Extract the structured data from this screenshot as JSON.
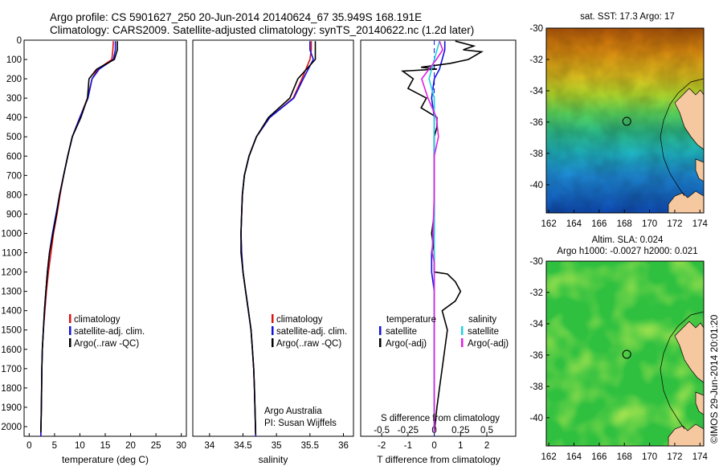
{
  "header": {
    "line1": "Argo profile: CS 5901627_250 20-Jun-2014 20140624_67 35.949S 168.191E",
    "line2": "Climatology: CARS2009. Satellite-adjusted climatology: synTS_20140622.nc (1.2d later)"
  },
  "colors": {
    "climatology": "#e01010",
    "satellite": "#1010e0",
    "argo": "#000000",
    "satellite_salinity": "#20d0e0",
    "argo_salinity": "#e020e0",
    "land": "#f5c8a0"
  },
  "chart_data": [
    {
      "type": "line",
      "id": "temperature",
      "xlabel": "temperature (deg C)",
      "xlim": [
        -1,
        31
      ],
      "xticks": [
        0,
        5,
        10,
        15,
        20,
        25,
        30
      ],
      "ylim": [
        0,
        2050
      ],
      "yticks": [
        0,
        100,
        200,
        300,
        400,
        500,
        600,
        700,
        800,
        900,
        1000,
        1100,
        1200,
        1300,
        1400,
        1500,
        1600,
        1700,
        1800,
        1900,
        2000
      ],
      "legend": {
        "placement": "lower-center",
        "entries": [
          "climatology",
          "satellite-adj. clim.",
          "Argo(..raw -QC)"
        ]
      },
      "series": [
        {
          "name": "climatology",
          "x": [
            16.6,
            16.5,
            16.3,
            13.5,
            12.4,
            11.5,
            10.0,
            8.5,
            7.6,
            6.8,
            6.1,
            5.5,
            4.8,
            4.3,
            3.8,
            3.4,
            3.1,
            2.8,
            2.6,
            2.5,
            2.4,
            2.3
          ],
          "y": [
            5,
            50,
            100,
            150,
            200,
            300,
            400,
            500,
            600,
            700,
            800,
            900,
            1000,
            1100,
            1200,
            1300,
            1400,
            1500,
            1600,
            1700,
            1900,
            2050
          ]
        },
        {
          "name": "satellite-adj. clim.",
          "x": [
            17.0,
            17.0,
            16.6,
            13.8,
            12.4,
            11.6,
            10.0,
            8.5,
            7.6,
            6.8,
            6.0,
            5.3,
            4.6,
            4.0,
            3.6,
            3.3,
            3.0,
            2.8,
            2.6,
            2.5,
            2.4,
            2.3
          ],
          "y": [
            5,
            50,
            100,
            150,
            200,
            300,
            400,
            500,
            600,
            700,
            800,
            900,
            1000,
            1100,
            1200,
            1300,
            1400,
            1500,
            1600,
            1700,
            1900,
            2050
          ]
        },
        {
          "name": "Argo(..raw -QC)",
          "x": [
            17.4,
            17.4,
            16.8,
            13.3,
            11.8,
            11.5,
            10.2,
            8.5,
            7.6,
            6.8,
            6.0,
            5.4,
            4.7,
            4.0,
            3.6,
            3.3,
            3.0,
            2.8,
            2.6,
            2.5,
            2.4,
            2.3
          ],
          "y": [
            5,
            50,
            100,
            150,
            200,
            300,
            400,
            500,
            600,
            700,
            800,
            900,
            1000,
            1100,
            1200,
            1300,
            1400,
            1500,
            1600,
            1700,
            1900,
            2030
          ]
        }
      ]
    },
    {
      "type": "line",
      "id": "salinity",
      "xlabel": "salinity",
      "xlim": [
        33.75,
        36.15
      ],
      "xticks": [
        34,
        34.5,
        35,
        35.5,
        36
      ],
      "ylim": [
        0,
        2050
      ],
      "legend": {
        "placement": "lower-center",
        "entries": [
          "climatology",
          "satellite-adj. clim.",
          "Argo(..raw -QC)"
        ]
      },
      "annotation": [
        "Argo Australia",
        "PI: Susan Wijffels"
      ],
      "series": [
        {
          "name": "climatology",
          "x": [
            35.52,
            35.52,
            35.5,
            35.38,
            35.25,
            34.9,
            34.7,
            34.59,
            34.52,
            34.49,
            34.48,
            34.47,
            34.48,
            34.5,
            34.54,
            34.58,
            34.62,
            34.64,
            34.66,
            34.67,
            34.69
          ],
          "y": [
            5,
            50,
            100,
            200,
            300,
            400,
            500,
            600,
            700,
            800,
            900,
            1000,
            1100,
            1200,
            1300,
            1400,
            1500,
            1600,
            1700,
            1800,
            2050
          ]
        },
        {
          "name": "satellite-adj. clim.",
          "x": [
            35.5,
            35.5,
            35.55,
            35.4,
            35.26,
            34.9,
            34.7,
            34.59,
            34.52,
            34.49,
            34.48,
            34.47,
            34.48,
            34.5,
            34.54,
            34.58,
            34.62,
            34.64,
            34.66,
            34.67,
            34.69
          ],
          "y": [
            5,
            50,
            100,
            200,
            300,
            400,
            500,
            600,
            700,
            800,
            900,
            1000,
            1100,
            1200,
            1300,
            1400,
            1500,
            1600,
            1700,
            1800,
            2050
          ]
        },
        {
          "name": "Argo(..raw -QC)",
          "x": [
            35.58,
            35.58,
            35.58,
            35.32,
            35.2,
            34.88,
            34.7,
            34.59,
            34.52,
            34.49,
            34.48,
            34.47,
            34.47,
            34.5,
            34.54,
            34.58,
            34.62,
            34.64,
            34.66,
            34.67,
            34.69
          ],
          "y": [
            5,
            50,
            100,
            200,
            300,
            400,
            500,
            600,
            700,
            800,
            900,
            1000,
            1100,
            1200,
            1300,
            1400,
            1500,
            1600,
            1700,
            1800,
            2040
          ]
        }
      ]
    },
    {
      "type": "line",
      "id": "difference",
      "xlabel": "T difference from climatology",
      "xlabel_top": "S difference from climatology",
      "xlim": [
        -2.8,
        3.1
      ],
      "xticks": [
        -2,
        -1,
        0,
        1,
        2
      ],
      "xticks_top": [
        "-0.5",
        "-0.25",
        "0",
        "0.25",
        "0.5"
      ],
      "ylim": [
        0,
        2050
      ],
      "legend": {
        "placement": "lower-center",
        "temperature_title": "temperature",
        "salinity_title": "salinity",
        "entries_t": [
          "satellite",
          "Argo(-adj)"
        ],
        "entries_s": [
          "satellite",
          "Argo(-adj)"
        ]
      },
      "series": [
        {
          "name": "temperature satellite",
          "x": [
            0.4,
            0.4,
            0.3,
            0.2,
            0.0,
            -0.1,
            0.0,
            0.0,
            0.0,
            0.0,
            0.0,
            -0.1,
            -0.1,
            0.0,
            0.0,
            0.0,
            0.0,
            0.0
          ],
          "y": [
            5,
            50,
            100,
            150,
            200,
            300,
            400,
            500,
            700,
            900,
            1000,
            1100,
            1200,
            1300,
            1500,
            1700,
            1900,
            2030
          ]
        },
        {
          "name": "temperature Argo(-adj)",
          "x": [
            0.8,
            1.5,
            1.1,
            1.8,
            1.3,
            0.6,
            -0.5,
            0.1,
            -1.2,
            -0.8,
            -1.0,
            -0.3,
            -0.5,
            0.1,
            0.1,
            0.0,
            0.0,
            0.0,
            -0.1,
            0.0,
            0.0,
            0.0,
            0.5,
            0.8,
            1.0,
            0.8,
            0.3,
            0.5,
            0.3,
            0.2,
            0.1,
            0.0
          ],
          "y": [
            5,
            30,
            50,
            60,
            100,
            120,
            140,
            150,
            160,
            200,
            250,
            300,
            350,
            400,
            450,
            500,
            700,
            900,
            1000,
            1100,
            1150,
            1200,
            1210,
            1250,
            1300,
            1350,
            1400,
            1500,
            1700,
            1800,
            1900,
            2030
          ]
        },
        {
          "name": "salinity satellite",
          "x": [
            0.05,
            0.0,
            -0.05,
            0.0,
            0.0,
            0.0,
            0.0,
            0.0,
            0.0,
            0.0,
            0.0,
            0.0
          ],
          "y": [
            5,
            100,
            200,
            300,
            400,
            500,
            700,
            1000,
            1200,
            1500,
            1800,
            2030
          ]
        },
        {
          "name": "salinity Argo(-adj)",
          "x": [
            0.05,
            0.08,
            0.02,
            -0.12,
            -0.06,
            0.02,
            0.03,
            0.04,
            0.0,
            0.0,
            -0.02,
            0.0,
            0.0,
            0.0,
            0.0,
            0.0
          ],
          "y": [
            5,
            50,
            100,
            200,
            300,
            400,
            450,
            500,
            600,
            800,
            1100,
            1150,
            1200,
            1500,
            1800,
            2030
          ]
        }
      ]
    },
    {
      "type": "heatmap",
      "id": "sst-map",
      "title": "sat. SST: 17.3 Argo: 17",
      "xlim": [
        161.8,
        174.3
      ],
      "ylim": [
        -41.8,
        -30
      ],
      "xticks": [
        162,
        164,
        166,
        168,
        170,
        172,
        174
      ],
      "yticks": [
        -30,
        -32,
        -34,
        -36,
        -38,
        -40
      ],
      "marker": {
        "x": 168.191,
        "y": -35.949
      }
    },
    {
      "type": "heatmap",
      "id": "sla-map",
      "title": [
        "Altim. SLA: 0.024",
        "Argo h1000: -0.0027 h2000: 0.021"
      ],
      "xlim": [
        161.8,
        174.3
      ],
      "ylim": [
        -41.8,
        -30
      ],
      "xticks": [
        162,
        164,
        166,
        168,
        170,
        172,
        174
      ],
      "yticks": [
        -30,
        -32,
        -34,
        -36,
        -38,
        -40
      ],
      "marker": {
        "x": 168.191,
        "y": -35.949
      }
    }
  ],
  "footer": {
    "stamp": "©IMOS 29-Jun-2014 20:01:20"
  }
}
